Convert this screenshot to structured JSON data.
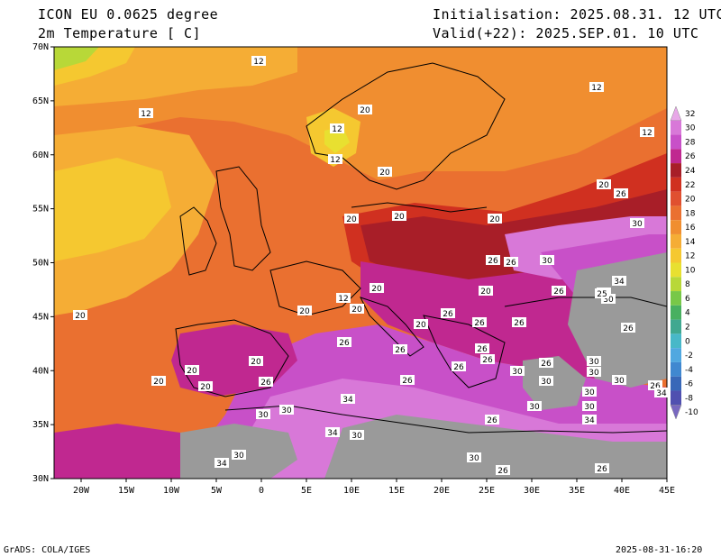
{
  "header": {
    "model": "ICON EU 0.0625 degree",
    "variable": "2m Temperature [ C]",
    "initialisation": "Initialisation: 2025.08.31. 12 UTC",
    "valid": "Valid(+22): 2025.SEP.01. 10 UTC"
  },
  "footer": {
    "credit": "GrADS: COLA/IGES",
    "timestamp": "2025-08-31-16:20"
  },
  "map": {
    "lat_ticks": [
      "70N",
      "65N",
      "60N",
      "55N",
      "50N",
      "45N",
      "40N",
      "35N",
      "30N"
    ],
    "lon_ticks": [
      "20W",
      "15W",
      "10W",
      "5W",
      "0",
      "5E",
      "10E",
      "15E",
      "20E",
      "25E",
      "30E",
      "35E",
      "40E",
      "45E"
    ],
    "lat_range": [
      30,
      70
    ],
    "lon_range": [
      -23,
      45
    ]
  },
  "colorbar": {
    "levels": [
      "32",
      "30",
      "28",
      "26",
      "24",
      "22",
      "20",
      "18",
      "16",
      "14",
      "12",
      "10",
      "8",
      "6",
      "4",
      "2",
      "0",
      "-2",
      "-4",
      "-6",
      "-8",
      "-10"
    ],
    "colors": [
      "#e8a8e8",
      "#d878d8",
      "#c850c8",
      "#c02890",
      "#a81e28",
      "#d03020",
      "#e05030",
      "#ea7030",
      "#f08e30",
      "#f5ad35",
      "#f5c830",
      "#e8e030",
      "#b8d838",
      "#78c848",
      "#48b060",
      "#40a890",
      "#48b8c8",
      "#50a8e0",
      "#4088d0",
      "#3868b8",
      "#5050b0",
      "#7868c0"
    ]
  },
  "contour_labels": [
    {
      "text": "12"
    },
    {
      "text": "12"
    },
    {
      "text": "20"
    },
    {
      "text": "12"
    },
    {
      "text": "12"
    },
    {
      "text": "20"
    },
    {
      "text": "12"
    },
    {
      "text": "12"
    },
    {
      "text": "20"
    },
    {
      "text": "26"
    },
    {
      "text": "20"
    },
    {
      "text": "20"
    },
    {
      "text": "30"
    },
    {
      "text": "20"
    },
    {
      "text": "26"
    },
    {
      "text": "26"
    },
    {
      "text": "30"
    },
    {
      "text": "20"
    },
    {
      "text": "20"
    },
    {
      "text": "26"
    },
    {
      "text": "34"
    },
    {
      "text": "26"
    },
    {
      "text": "30"
    },
    {
      "text": "12"
    },
    {
      "text": "20"
    },
    {
      "text": "20"
    },
    {
      "text": "20"
    },
    {
      "text": "26"
    },
    {
      "text": "26"
    },
    {
      "text": "26"
    },
    {
      "text": "26"
    },
    {
      "text": "26"
    },
    {
      "text": "20"
    },
    {
      "text": "26"
    },
    {
      "text": "26"
    },
    {
      "text": "20"
    },
    {
      "text": "20"
    },
    {
      "text": "20"
    },
    {
      "text": "26"
    },
    {
      "text": "26"
    },
    {
      "text": "26"
    },
    {
      "text": "30"
    },
    {
      "text": "26"
    },
    {
      "text": "30"
    },
    {
      "text": "30"
    },
    {
      "text": "20"
    },
    {
      "text": "26"
    },
    {
      "text": "30"
    },
    {
      "text": "30"
    },
    {
      "text": "26"
    },
    {
      "text": "30"
    },
    {
      "text": "34"
    },
    {
      "text": "25"
    },
    {
      "text": "30"
    },
    {
      "text": "30"
    },
    {
      "text": "34"
    },
    {
      "text": "30"
    },
    {
      "text": "34"
    },
    {
      "text": "30"
    },
    {
      "text": "26"
    },
    {
      "text": "30"
    },
    {
      "text": "34"
    },
    {
      "text": "34"
    },
    {
      "text": "30"
    },
    {
      "text": "30"
    },
    {
      "text": "26"
    },
    {
      "text": "26"
    }
  ]
}
